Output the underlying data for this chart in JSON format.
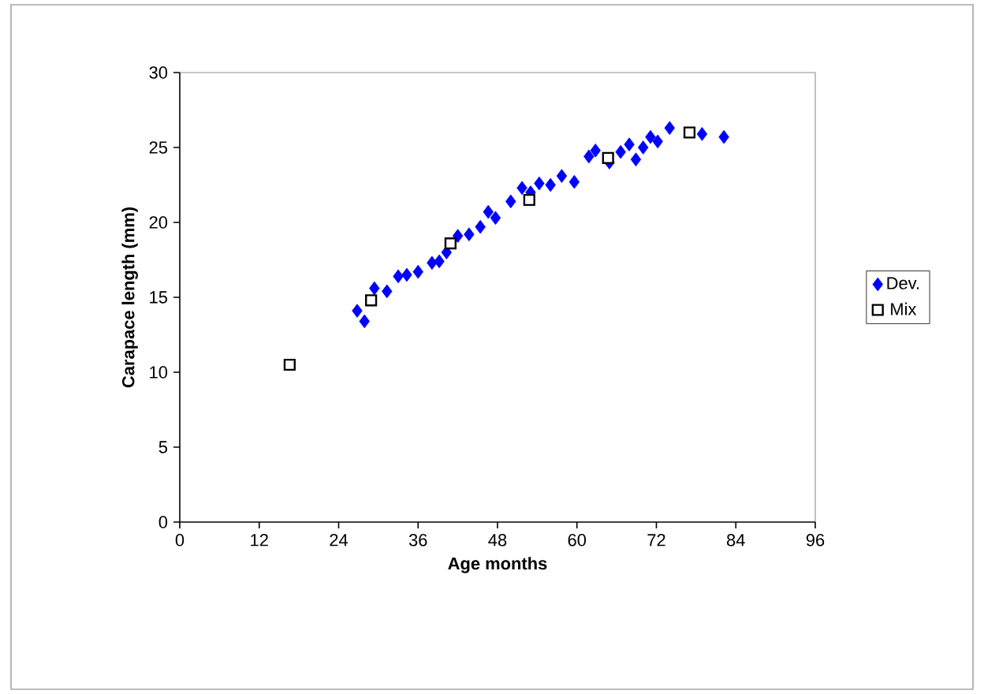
{
  "chart_data": {
    "type": "scatter",
    "xlabel": "Age months",
    "ylabel": "Carapace length (mm)",
    "xlim": [
      0,
      96
    ],
    "xticks": [
      0,
      12,
      24,
      36,
      48,
      60,
      72,
      84,
      96
    ],
    "ylim": [
      0,
      30
    ],
    "yticks": [
      0,
      5,
      10,
      15,
      20,
      25,
      30
    ],
    "legend": "right",
    "grid": false,
    "series": [
      {
        "name": "Dev.",
        "color": "#0000ff",
        "marker": "diamond",
        "x": [
          26.8,
          27.9,
          29.4,
          31.3,
          33,
          34.3,
          36,
          38.1,
          39.2,
          40.3,
          42,
          43.7,
          45.4,
          46.6,
          47.7,
          50,
          51.7,
          53,
          54.3,
          56,
          57.7,
          59.6,
          61.8,
          62.8,
          64.9,
          66.6,
          67.9,
          68.9,
          70,
          71.1,
          72.2,
          74,
          78.9,
          82.2
        ],
        "values": [
          14.1,
          13.4,
          15.6,
          15.4,
          16.4,
          16.5,
          16.7,
          17.3,
          17.4,
          18,
          19.1,
          19.2,
          19.7,
          20.7,
          20.3,
          21.4,
          22.3,
          22,
          22.6,
          22.5,
          23.1,
          22.7,
          24.4,
          24.8,
          24,
          24.7,
          25.2,
          24.2,
          25,
          25.7,
          25.4,
          26.3,
          25.9,
          25.7
        ]
      },
      {
        "name": "Mix",
        "color": "#000000",
        "marker": "square",
        "x": [
          16.6,
          28.9,
          40.9,
          52.8,
          64.7,
          77
        ],
        "values": [
          10.5,
          14.8,
          18.6,
          21.5,
          24.3,
          26
        ]
      }
    ]
  }
}
